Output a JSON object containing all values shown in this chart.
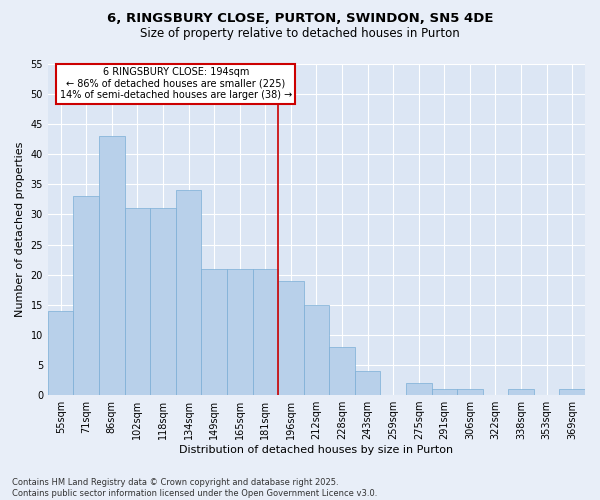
{
  "title": "6, RINGSBURY CLOSE, PURTON, SWINDON, SN5 4DE",
  "subtitle": "Size of property relative to detached houses in Purton",
  "xlabel": "Distribution of detached houses by size in Purton",
  "ylabel": "Number of detached properties",
  "categories": [
    "55sqm",
    "71sqm",
    "86sqm",
    "102sqm",
    "118sqm",
    "134sqm",
    "149sqm",
    "165sqm",
    "181sqm",
    "196sqm",
    "212sqm",
    "228sqm",
    "243sqm",
    "259sqm",
    "275sqm",
    "291sqm",
    "306sqm",
    "322sqm",
    "338sqm",
    "353sqm",
    "369sqm"
  ],
  "values": [
    14,
    33,
    43,
    31,
    31,
    34,
    21,
    21,
    21,
    19,
    15,
    8,
    4,
    0,
    2,
    1,
    1,
    0,
    1,
    0,
    1
  ],
  "bar_color": "#b8d0ea",
  "bar_edge_color": "#7aaed6",
  "vline_index": 9,
  "annotation_title": "6 RINGSBURY CLOSE: 194sqm",
  "annotation_line1": "← 86% of detached houses are smaller (225)",
  "annotation_line2": "14% of semi-detached houses are larger (38) →",
  "annotation_box_facecolor": "#ffffff",
  "annotation_box_edgecolor": "#cc0000",
  "vline_color": "#cc0000",
  "ylim": [
    0,
    55
  ],
  "yticks": [
    0,
    5,
    10,
    15,
    20,
    25,
    30,
    35,
    40,
    45,
    50,
    55
  ],
  "bg_color": "#e8eef8",
  "plot_bg_color": "#dce6f4",
  "grid_color": "#ffffff",
  "footer": "Contains HM Land Registry data © Crown copyright and database right 2025.\nContains public sector information licensed under the Open Government Licence v3.0.",
  "title_fontsize": 9.5,
  "subtitle_fontsize": 8.5,
  "xlabel_fontsize": 8,
  "ylabel_fontsize": 8,
  "annot_fontsize": 7,
  "tick_fontsize": 7,
  "footer_fontsize": 6
}
